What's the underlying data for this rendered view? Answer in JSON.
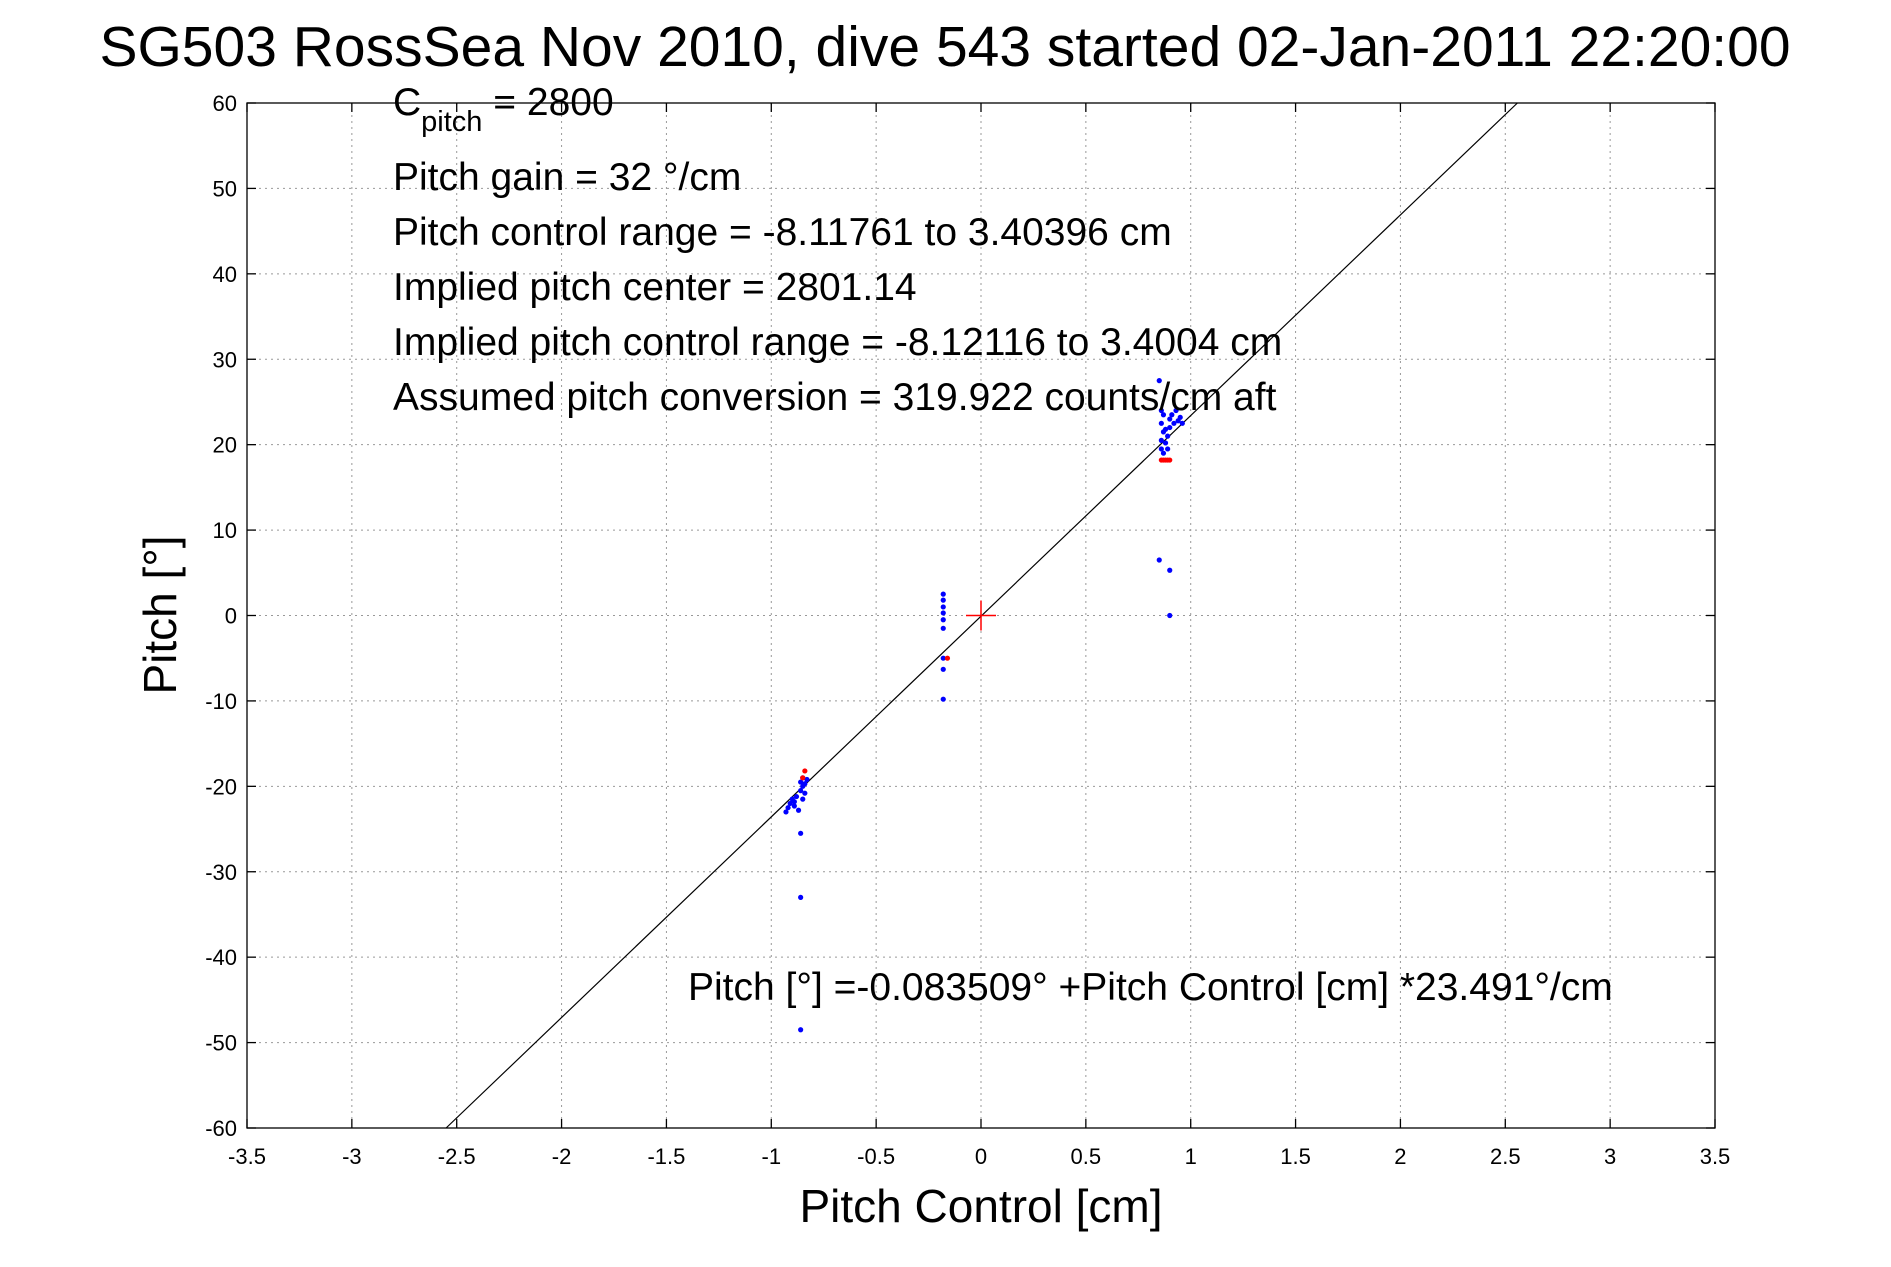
{
  "chart_data": {
    "type": "scatter",
    "title": "SG503 RossSea Nov 2010, dive 543 started 02-Jan-2011 22:20:00",
    "xlabel": "Pitch Control [cm]",
    "ylabel": "Pitch [°]",
    "xlim": [
      -3.5,
      3.5
    ],
    "ylim": [
      -60,
      60
    ],
    "xticks": [
      -3.5,
      -3,
      -2.5,
      -2,
      -1.5,
      -1,
      -0.5,
      0,
      0.5,
      1,
      1.5,
      2,
      2.5,
      3,
      3.5
    ],
    "xtick_labels": [
      "-3.5",
      "-3",
      "-2.5",
      "-2",
      "-1.5",
      "-1",
      "-0.5",
      "0",
      "0.5",
      "1",
      "1.5",
      "2",
      "2.5",
      "3",
      "3.5"
    ],
    "yticks": [
      -60,
      -50,
      -40,
      -30,
      -20,
      -10,
      0,
      10,
      20,
      30,
      40,
      50,
      60
    ],
    "ytick_labels": [
      "-60",
      "-50",
      "-40",
      "-30",
      "-20",
      "-10",
      "0",
      "10",
      "20",
      "30",
      "40",
      "50",
      "60"
    ],
    "grid": true,
    "colors": {
      "blue_points": "#0000ff",
      "red_points": "#ff0000",
      "fit_line": "#000000",
      "center_marker": "#ff0000"
    },
    "fit_line": {
      "intercept": -0.083509,
      "slope": 23.491
    },
    "center_marker": {
      "x": 0,
      "y": 0
    },
    "series": [
      {
        "values": [
          [
            -0.93,
            -23.0
          ],
          [
            -0.92,
            -22.5
          ],
          [
            -0.91,
            -22.0
          ],
          [
            -0.9,
            -21.5
          ],
          [
            -0.89,
            -22.3
          ],
          [
            -0.89,
            -21.8
          ],
          [
            -0.88,
            -21.2
          ],
          [
            -0.87,
            -22.8
          ],
          [
            -0.86,
            -20.5
          ],
          [
            -0.86,
            -19.5
          ],
          [
            -0.85,
            -20.0
          ],
          [
            -0.85,
            -19.0
          ],
          [
            -0.84,
            -20.8
          ],
          [
            -0.84,
            -19.7
          ],
          [
            -0.83,
            -19.2
          ],
          [
            -0.85,
            -21.5
          ],
          [
            -0.86,
            -25.5
          ],
          [
            -0.86,
            -33.0
          ],
          [
            -0.86,
            -48.5
          ],
          [
            -0.18,
            2.5
          ],
          [
            -0.18,
            1.8
          ],
          [
            -0.18,
            1.0
          ],
          [
            -0.18,
            0.3
          ],
          [
            -0.18,
            -0.5
          ],
          [
            -0.18,
            -1.5
          ],
          [
            -0.18,
            -5.0
          ],
          [
            -0.18,
            -6.3
          ],
          [
            -0.18,
            -9.8
          ],
          [
            0.85,
            27.5
          ],
          [
            0.86,
            24.0
          ],
          [
            0.87,
            23.5
          ],
          [
            0.86,
            22.5
          ],
          [
            0.87,
            21.5
          ],
          [
            0.86,
            20.5
          ],
          [
            0.86,
            19.5
          ],
          [
            0.87,
            19.0
          ],
          [
            0.88,
            20.2
          ],
          [
            0.89,
            21.0
          ],
          [
            0.9,
            22.0
          ],
          [
            0.9,
            23.0
          ],
          [
            0.91,
            23.5
          ],
          [
            0.92,
            22.5
          ],
          [
            0.93,
            24.0
          ],
          [
            0.94,
            22.8
          ],
          [
            0.95,
            23.2
          ],
          [
            0.96,
            22.5
          ],
          [
            0.89,
            19.5
          ],
          [
            0.88,
            21.8
          ],
          [
            0.85,
            6.5
          ],
          [
            0.9,
            5.3
          ],
          [
            0.9,
            0.0
          ]
        ]
      },
      {
        "values": [
          [
            -0.84,
            -18.2
          ],
          [
            -0.85,
            -19.0
          ],
          [
            -0.16,
            -5.0
          ],
          [
            0.86,
            18.2
          ],
          [
            0.87,
            18.2
          ],
          [
            0.88,
            18.2
          ],
          [
            0.89,
            18.2
          ],
          [
            0.9,
            18.2
          ]
        ]
      }
    ]
  },
  "annotations": {
    "c_pitch_main": "C",
    "c_pitch_sub": "pitch",
    "c_pitch_value": " = 2800",
    "pitch_gain": "Pitch gain = 32 °/cm",
    "pitch_control_range": "Pitch control range = -8.11761 to 3.40396 cm",
    "implied_pitch_center": "Implied pitch center = 2801.14",
    "implied_pitch_control_range": "Implied pitch control range = -8.12116 to 3.4004 cm",
    "assumed_pitch_conversion": "Assumed pitch conversion = 319.922 counts/cm aft",
    "fit_equation": "Pitch [°] =-0.083509° +Pitch Control [cm] *23.491°/cm"
  }
}
